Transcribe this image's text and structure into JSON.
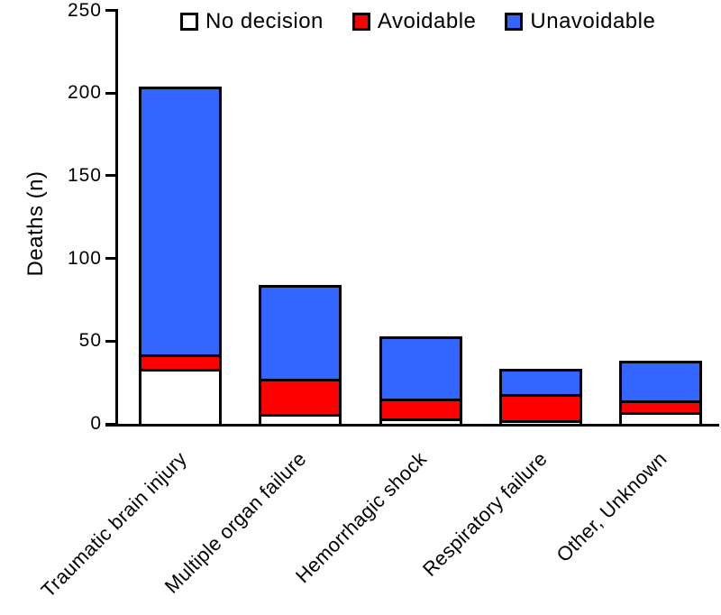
{
  "chart_data": {
    "type": "bar",
    "subtype": "stacked-vertical",
    "title": "",
    "ylabel": "Deaths (n)",
    "xlabel": "",
    "ylim": [
      0,
      250
    ],
    "yticks": [
      0,
      50,
      100,
      150,
      200,
      250
    ],
    "grid": false,
    "legend_position": "top",
    "categories": [
      "Traumatic brain injury",
      "Multiple organ failure",
      "Hemorrhagic shock",
      "Respiratory failure",
      "Other, Unknown"
    ],
    "series": [
      {
        "name": "No decision",
        "color": "#FFFFFF",
        "values": [
          33,
          6,
          3,
          2,
          7
        ]
      },
      {
        "name": "Avoidable",
        "color": "#FF0000",
        "values": [
          9,
          21,
          12,
          16,
          7
        ]
      },
      {
        "name": "Unavoidable",
        "color": "#3366FF",
        "values": [
          162,
          57,
          38,
          15,
          24
        ]
      }
    ]
  },
  "colors": {
    "axis": "#000000",
    "text": "#000000",
    "background": "#FFFFFF"
  }
}
